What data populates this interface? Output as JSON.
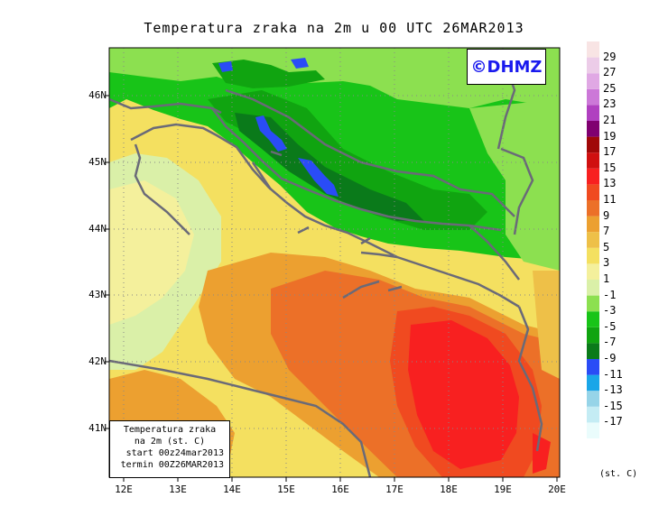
{
  "title": "Temperatura zraka na 2m u 00 UTC 26MAR2013",
  "logo": "©DHMZ",
  "info_box": {
    "line1": "Temperatura zraka",
    "line2": "na 2m (st. C)",
    "line3": "start 00z24mar2013",
    "line4": "termin 00Z26MAR2013"
  },
  "lat_labels": [
    "46N",
    "45N",
    "44N",
    "43N",
    "42N",
    "41N"
  ],
  "lon_labels": [
    "12E",
    "13E",
    "14E",
    "15E",
    "16E",
    "17E",
    "18E",
    "19E",
    "20E"
  ],
  "colorbar": {
    "colors": [
      "#eafcfc",
      "#c4ecf4",
      "#96d4e8",
      "#1aa6e8",
      "#2a4cf6",
      "#0a7a1a",
      "#10a410",
      "#18c418",
      "#8ce050",
      "#daf0a8",
      "#f4f09c",
      "#f4e060",
      "#eec048",
      "#eca030",
      "#ec7028",
      "#f04a20",
      "#f82020",
      "#d01010",
      "#a00808",
      "#800070",
      "#b040c0",
      "#cc78d8",
      "#e0a8e4",
      "#eccce8",
      "#f8e4e4"
    ],
    "labels": [
      "-17",
      "-15",
      "-13",
      "-11",
      "-9",
      "-7",
      "-5",
      "-3",
      "-1",
      "1",
      "3",
      "5",
      "7",
      "9",
      "11",
      "13",
      "15",
      "17",
      "19",
      "21",
      "23",
      "25",
      "27",
      "29"
    ],
    "unit": "(st. C)"
  }
}
